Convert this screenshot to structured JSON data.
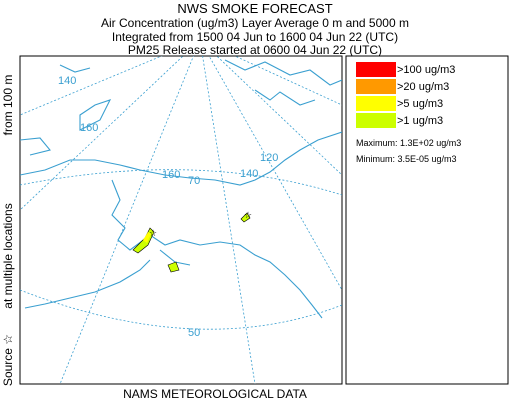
{
  "header": {
    "title": "NWS SMOKE FORECAST",
    "lines": [
      "Air Concentration (ug/m3) Layer Average    0 m and  5000 m",
      "Integrated from 1500 04 Jun to 1600 04 Jun 22 (UTC)",
      "PM25 Release started at 0600 04 Jun 22 (UTC)"
    ]
  },
  "side_label": [
    "Source ☆",
    "at multiple locations",
    "from  100 m"
  ],
  "legend": {
    "items": [
      {
        "label": ">100 ug/m3",
        "color": "#ff0000"
      },
      {
        "label": ">20 ug/m3",
        "color": "#ff9900"
      },
      {
        "label": ">5 ug/m3",
        "color": "#ffff00"
      },
      {
        "label": ">1 ug/m3",
        "color": "#ccff00"
      }
    ]
  },
  "stats": {
    "maximum": "Maximum: 1.3E+02 ug/m3",
    "minimum": "Minimum: 3.5E-05 ug/m3"
  },
  "map_labels": [
    "140",
    "160",
    "160",
    "70",
    "140",
    "120",
    "50"
  ],
  "footer": "NAMS METEOROLOGICAL DATA"
}
